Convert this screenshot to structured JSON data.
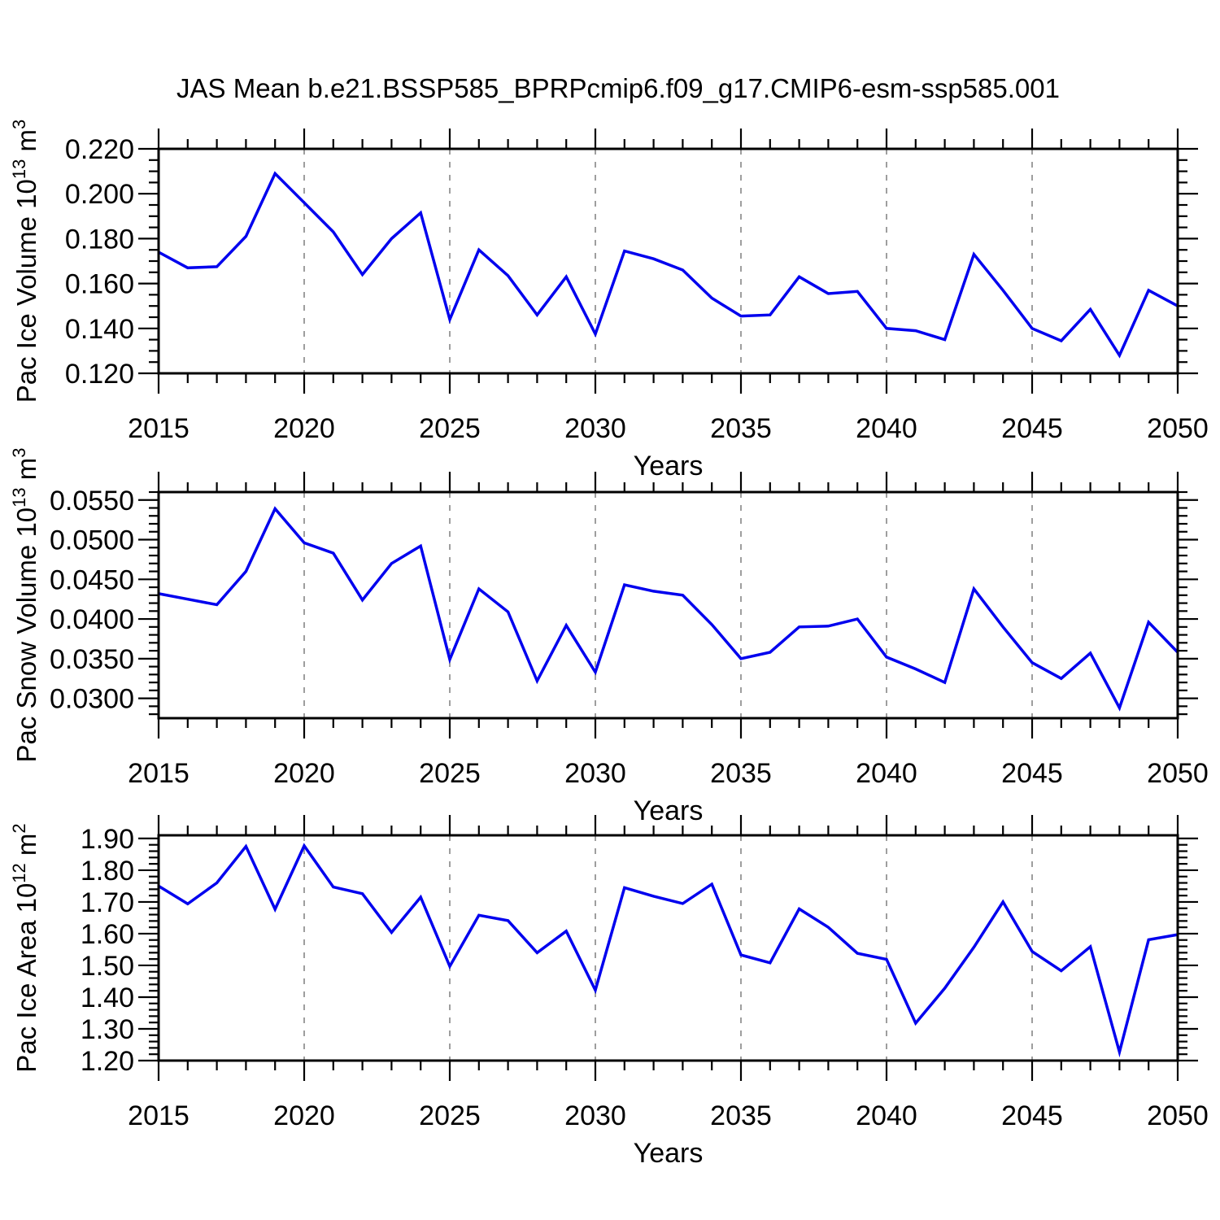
{
  "title": "JAS Mean b.e21.BSSP585_BPRPcmip6.f09_g17.CMIP6-esm-ssp585.001",
  "colors": {
    "line": "#0000EE",
    "grid": "#9e9e9e",
    "axis": "#000000",
    "background": "#ffffff"
  },
  "chart_data": [
    {
      "id": "pac-ice-volume",
      "type": "line",
      "title": "",
      "ylabel": "Pac Ice Volume 10^13 m^3",
      "ylabel_segments": [
        {
          "text": "Pac Ice Volume 10",
          "super": false
        },
        {
          "text": "13",
          "super": true
        },
        {
          "text": " m",
          "super": false
        },
        {
          "text": "3",
          "super": true
        }
      ],
      "xlabel": "Years",
      "x": [
        2015,
        2016,
        2017,
        2018,
        2019,
        2020,
        2021,
        2022,
        2023,
        2024,
        2025,
        2026,
        2027,
        2028,
        2029,
        2030,
        2031,
        2032,
        2033,
        2034,
        2035,
        2036,
        2037,
        2038,
        2039,
        2040,
        2041,
        2042,
        2043,
        2044,
        2045,
        2046,
        2047,
        2048,
        2049,
        2050
      ],
      "values": [
        0.174,
        0.167,
        0.1675,
        0.181,
        0.209,
        0.196,
        0.183,
        0.164,
        0.18,
        0.1915,
        0.144,
        0.175,
        0.1635,
        0.146,
        0.163,
        0.1375,
        0.1745,
        0.171,
        0.166,
        0.1535,
        0.1455,
        0.146,
        0.163,
        0.1555,
        0.1565,
        0.14,
        0.139,
        0.135,
        0.173,
        0.157,
        0.14,
        0.1345,
        0.1485,
        0.128,
        0.157,
        0.15
      ],
      "xlim": [
        2015,
        2050
      ],
      "ylim": [
        0.12,
        0.22
      ],
      "yticks_major": [
        0.12,
        0.14,
        0.16,
        0.18,
        0.2,
        0.22
      ],
      "ytick_labels": [
        "0.120",
        "0.140",
        "0.160",
        "0.180",
        "0.200",
        "0.220"
      ],
      "ytick_minor_step": 0.005,
      "xticks_major": [
        2015,
        2020,
        2025,
        2030,
        2035,
        2040,
        2045,
        2050
      ],
      "xtick_labels": [
        "2015",
        "2020",
        "2025",
        "2030",
        "2035",
        "2040",
        "2045",
        "2050"
      ],
      "xtick_minor_step": 1,
      "grid_years": [
        2020,
        2025,
        2030,
        2035,
        2040,
        2045
      ],
      "grid_on": true,
      "legend": "none"
    },
    {
      "id": "pac-snow-volume",
      "type": "line",
      "title": "",
      "ylabel": "Pac Snow Volume 10^13 m^3",
      "ylabel_segments": [
        {
          "text": "Pac Snow Volume 10",
          "super": false
        },
        {
          "text": "13",
          "super": true
        },
        {
          "text": " m",
          "super": false
        },
        {
          "text": "3",
          "super": true
        }
      ],
      "xlabel": "Years",
      "x": [
        2015,
        2016,
        2017,
        2018,
        2019,
        2020,
        2021,
        2022,
        2023,
        2024,
        2025,
        2026,
        2027,
        2028,
        2029,
        2030,
        2031,
        2032,
        2033,
        2034,
        2035,
        2036,
        2037,
        2038,
        2039,
        2040,
        2041,
        2042,
        2043,
        2044,
        2045,
        2046,
        2047,
        2048,
        2049,
        2050
      ],
      "values": [
        0.0432,
        0.0425,
        0.0418,
        0.046,
        0.0539,
        0.0496,
        0.0483,
        0.0424,
        0.047,
        0.0492,
        0.0349,
        0.0438,
        0.0409,
        0.0322,
        0.0392,
        0.0333,
        0.0443,
        0.0435,
        0.043,
        0.0393,
        0.035,
        0.0358,
        0.039,
        0.0391,
        0.04,
        0.0352,
        0.0337,
        0.032,
        0.0438,
        0.039,
        0.0345,
        0.0325,
        0.0357,
        0.0288,
        0.0396,
        0.0358
      ],
      "xlim": [
        2015,
        2050
      ],
      "ylim": [
        0.0275,
        0.056
      ],
      "yticks_major": [
        0.03,
        0.035,
        0.04,
        0.045,
        0.05,
        0.055
      ],
      "ytick_labels": [
        "0.0300",
        "0.0350",
        "0.0400",
        "0.0450",
        "0.0500",
        "0.0550"
      ],
      "ytick_minor_step": 0.001,
      "xticks_major": [
        2015,
        2020,
        2025,
        2030,
        2035,
        2040,
        2045,
        2050
      ],
      "xtick_labels": [
        "2015",
        "2020",
        "2025",
        "2030",
        "2035",
        "2040",
        "2045",
        "2050"
      ],
      "xtick_minor_step": 1,
      "grid_years": [
        2020,
        2025,
        2030,
        2035,
        2040,
        2045
      ],
      "grid_on": true,
      "legend": "none"
    },
    {
      "id": "pac-ice-area",
      "type": "line",
      "title": "",
      "ylabel": "Pac Ice Area 10^12 m^2",
      "ylabel_segments": [
        {
          "text": "Pac Ice Area 10",
          "super": false
        },
        {
          "text": "12",
          "super": true
        },
        {
          "text": " m",
          "super": false
        },
        {
          "text": "2",
          "super": true
        }
      ],
      "xlabel": "Years",
      "x": [
        2015,
        2016,
        2017,
        2018,
        2019,
        2020,
        2021,
        2022,
        2023,
        2024,
        2025,
        2026,
        2027,
        2028,
        2029,
        2030,
        2031,
        2032,
        2033,
        2034,
        2035,
        2036,
        2037,
        2038,
        2039,
        2040,
        2041,
        2042,
        2043,
        2044,
        2045,
        2046,
        2047,
        2048,
        2049,
        2050
      ],
      "values": [
        1.75,
        1.694,
        1.76,
        1.875,
        1.677,
        1.877,
        1.747,
        1.726,
        1.604,
        1.715,
        1.497,
        1.658,
        1.641,
        1.54,
        1.608,
        1.422,
        1.745,
        1.718,
        1.695,
        1.756,
        1.533,
        1.508,
        1.678,
        1.62,
        1.538,
        1.519,
        1.318,
        1.428,
        1.557,
        1.7,
        1.544,
        1.483,
        1.559,
        1.227,
        1.581,
        1.597
      ],
      "xlim": [
        2015,
        2050
      ],
      "ylim": [
        1.2,
        1.91
      ],
      "yticks_major": [
        1.2,
        1.3,
        1.4,
        1.5,
        1.6,
        1.7,
        1.8,
        1.9
      ],
      "ytick_labels": [
        "1.20",
        "1.30",
        "1.40",
        "1.50",
        "1.60",
        "1.70",
        "1.80",
        "1.90"
      ],
      "ytick_minor_step": 0.02,
      "xticks_major": [
        2015,
        2020,
        2025,
        2030,
        2035,
        2040,
        2045,
        2050
      ],
      "xtick_labels": [
        "2015",
        "2020",
        "2025",
        "2030",
        "2035",
        "2040",
        "2045",
        "2050"
      ],
      "xtick_minor_step": 1,
      "grid_years": [
        2020,
        2025,
        2030,
        2035,
        2040,
        2045
      ],
      "grid_on": true,
      "legend": "none"
    }
  ]
}
